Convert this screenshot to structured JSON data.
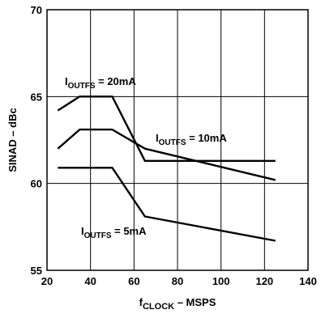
{
  "chart_data": {
    "type": "line",
    "title": "",
    "xlabel": {
      "main": "f",
      "sub": "CLOCK",
      "suffix": " – MSPS"
    },
    "ylabel": "SINAD – dBc",
    "xlim": [
      20,
      140
    ],
    "ylim": [
      55,
      70
    ],
    "xticks": [
      "20",
      "40",
      "60",
      "80",
      "100",
      "120",
      "140"
    ],
    "yticks": [
      "55",
      "60",
      "65",
      "70"
    ],
    "grid": true,
    "series": [
      {
        "name": "IOUTFS = 20mA",
        "label": {
          "main": "I",
          "sub": "OUTFS",
          "suffix": " = 20mA"
        },
        "x": [
          25,
          35,
          50,
          65,
          125
        ],
        "y": [
          64.2,
          65.0,
          65.0,
          61.3,
          61.3
        ]
      },
      {
        "name": "IOUTFS = 10mA",
        "label": {
          "main": "I",
          "sub": "OUTFS",
          "suffix": " = 10mA"
        },
        "x": [
          25,
          35,
          50,
          65,
          125
        ],
        "y": [
          62.0,
          63.1,
          63.1,
          62.0,
          60.2
        ]
      },
      {
        "name": "IOUTFS = 5mA",
        "label": {
          "main": "I",
          "sub": "OUTFS",
          "suffix": " = 5mA"
        },
        "x": [
          25,
          50,
          65,
          125
        ],
        "y": [
          60.9,
          60.9,
          58.1,
          56.7
        ]
      }
    ]
  }
}
